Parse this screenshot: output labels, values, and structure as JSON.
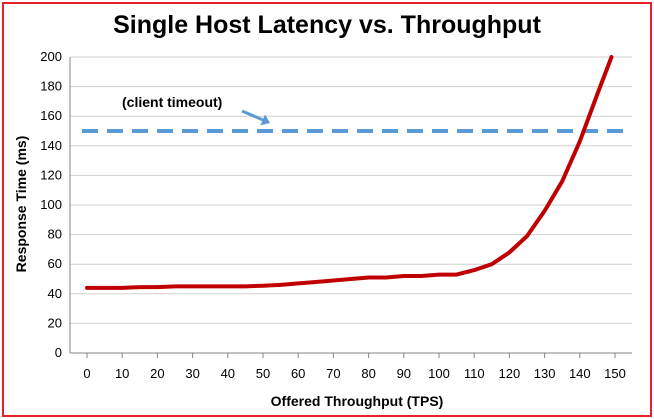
{
  "chart_data": {
    "type": "line",
    "title": "Single Host Latency vs. Throughput",
    "xlabel": "Offered Throughput (TPS)",
    "ylabel": "Response Time (ms)",
    "xlim": [
      0,
      150
    ],
    "ylim": [
      0,
      200
    ],
    "xticks": [
      0,
      10,
      20,
      30,
      40,
      50,
      60,
      70,
      80,
      90,
      100,
      110,
      120,
      130,
      140,
      150
    ],
    "yticks": [
      0,
      20,
      40,
      60,
      80,
      100,
      120,
      140,
      160,
      180,
      200
    ],
    "grid": "horizontal",
    "series": [
      {
        "color": "#c00000",
        "x": [
          0,
          5,
          10,
          15,
          20,
          25,
          30,
          35,
          40,
          45,
          50,
          55,
          60,
          65,
          70,
          75,
          80,
          85,
          90,
          95,
          100,
          105,
          110,
          115,
          120,
          125,
          130,
          135,
          140,
          145,
          149
        ],
        "y": [
          44,
          44,
          44,
          44.5,
          44.5,
          45,
          45,
          45,
          45,
          45,
          45.5,
          46,
          47,
          48,
          49,
          50,
          51,
          51,
          52,
          52,
          53,
          53,
          56,
          60,
          68,
          79,
          96,
          116,
          143,
          175,
          200
        ]
      }
    ],
    "reference_line": {
      "y": 150,
      "color": "#5b9bd5",
      "style": "dashed"
    },
    "annotation": {
      "text": "(client timeout)",
      "target_x": 52,
      "target_y": 150
    }
  }
}
